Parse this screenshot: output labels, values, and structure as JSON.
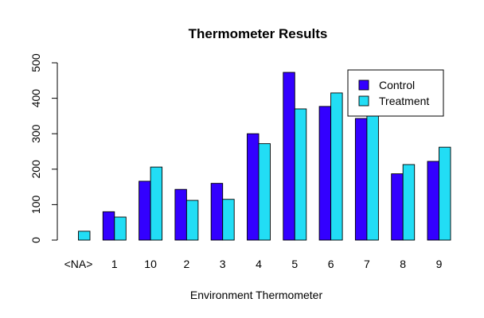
{
  "chart_data": {
    "type": "bar",
    "title": "Thermometer Results",
    "xlabel": "Environment Thermometer",
    "ylabel": "",
    "ylim": [
      0,
      500
    ],
    "yticks": [
      0,
      100,
      200,
      300,
      400,
      500
    ],
    "categories": [
      "<NA>",
      "1",
      "10",
      "2",
      "3",
      "4",
      "5",
      "6",
      "7",
      "8",
      "9"
    ],
    "series": [
      {
        "name": "Control",
        "color": "#3300ff",
        "values": [
          0,
          80,
          166,
          143,
          160,
          300,
          473,
          377,
          343,
          187,
          222
        ]
      },
      {
        "name": "Treatment",
        "color": "#22ddf5",
        "values": [
          25,
          65,
          206,
          112,
          115,
          272,
          370,
          415,
          362,
          213,
          262
        ]
      }
    ],
    "legend_position": "top-right",
    "grid": false
  }
}
